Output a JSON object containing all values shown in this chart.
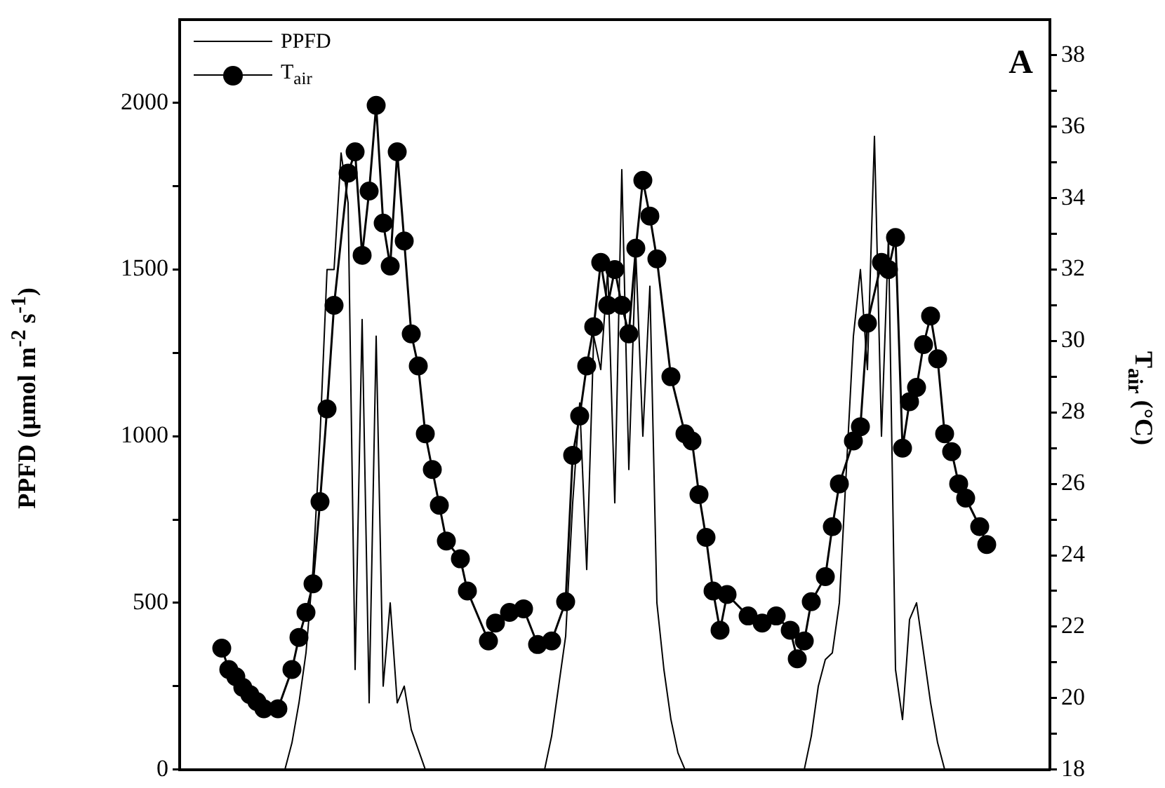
{
  "chart_data": {
    "type": "line",
    "ylabel": "PPFD (μmol m$^{-2}$ s$^{-1}$)",
    "y2label": "T$_{air}$ (°C)",
    "annotations": [
      "A"
    ],
    "categories": [
      null,
      null,
      null,
      null,
      null,
      null,
      null,
      null,
      null,
      null,
      null,
      null,
      null,
      null,
      null,
      null,
      null,
      null,
      null,
      null,
      null,
      null,
      null,
      null,
      null,
      null,
      null,
      null,
      null,
      null,
      null,
      null,
      null,
      null,
      null,
      null,
      null,
      null,
      null,
      null,
      null,
      null,
      null,
      null,
      null,
      null,
      null,
      null,
      null,
      null,
      null,
      null,
      null,
      null,
      null,
      null,
      null,
      null,
      null,
      null,
      null,
      null,
      null,
      null,
      null,
      null,
      null,
      null,
      null,
      null,
      null,
      null,
      null,
      null,
      null,
      null,
      null,
      null,
      null,
      null,
      null,
      null,
      null,
      null,
      null,
      null,
      null,
      null,
      null,
      null,
      null,
      null,
      null,
      null,
      null,
      null,
      null,
      null,
      null,
      null,
      null,
      null,
      null,
      null,
      null,
      null,
      null,
      null,
      null,
      null,
      null,
      null,
      null,
      null,
      null,
      null,
      null,
      null,
      null,
      null,
      null,
      null,
      null,
      null,
      null
    ],
    "series": [
      {
        "name": "PPFD",
        "color": "#000000",
        "marker": "none",
        "values": [
          0,
          0,
          0,
          0,
          0,
          0,
          0,
          0,
          0,
          0,
          0,
          0,
          0,
          0,
          0,
          0,
          80,
          200,
          350,
          600,
          1000,
          1500,
          1500,
          1850,
          1700,
          300,
          1350,
          200,
          1300,
          250,
          500,
          200,
          250,
          120,
          60,
          0,
          0,
          0,
          0,
          0,
          0,
          0,
          0,
          0,
          0,
          0,
          0,
          0,
          0,
          0,
          0,
          0,
          0,
          100,
          250,
          400,
          800,
          1100,
          600,
          1300,
          1200,
          1500,
          800,
          1800,
          900,
          1550,
          1000,
          1450,
          500,
          300,
          150,
          50,
          0,
          0,
          0,
          0,
          0,
          0,
          0,
          0,
          0,
          0,
          0,
          0,
          0,
          0,
          0,
          0,
          0,
          0,
          100,
          250,
          330,
          350,
          500,
          900,
          1300,
          1500,
          1200,
          1900,
          1000,
          1600,
          300,
          150,
          450,
          500,
          350,
          200,
          80,
          0,
          0,
          0,
          0,
          0,
          0,
          0,
          0,
          0,
          0,
          0,
          0,
          0,
          0,
          0,
          0
        ]
      },
      {
        "name": "T$_{air}$",
        "color": "#000000",
        "marker": "circle",
        "axis": "y2",
        "values": [
          null,
          null,
          null,
          null,
          null,
          null,
          21.4,
          20.8,
          20.6,
          20.3,
          20.1,
          19.9,
          19.7,
          null,
          19.7,
          null,
          20.8,
          21.7,
          22.4,
          23.2,
          25.5,
          28.1,
          31.0,
          null,
          34.7,
          35.3,
          32.4,
          34.2,
          36.6,
          33.3,
          32.1,
          35.3,
          32.8,
          30.2,
          29.3,
          27.4,
          26.4,
          25.4,
          24.4,
          null,
          23.9,
          23.0,
          null,
          null,
          21.6,
          22.1,
          null,
          22.4,
          null,
          22.5,
          null,
          21.5,
          null,
          21.6,
          null,
          22.7,
          26.8,
          27.9,
          29.3,
          30.4,
          32.2,
          31.0,
          32.0,
          31.0,
          30.2,
          32.6,
          34.5,
          33.5,
          32.3,
          null,
          29.0,
          null,
          27.4,
          27.2,
          25.7,
          24.5,
          23.0,
          21.9,
          22.9,
          null,
          null,
          22.3,
          null,
          22.1,
          null,
          22.3,
          null,
          21.9,
          21.1,
          21.6,
          22.7,
          null,
          23.4,
          24.8,
          26.0,
          null,
          27.2,
          27.6,
          30.5,
          null,
          32.2,
          32.0,
          32.9,
          27.0,
          28.3,
          28.7,
          29.9,
          30.7,
          29.5,
          27.4,
          26.9,
          26.0,
          25.6,
          null,
          24.8,
          24.3,
          null,
          null,
          null,
          null,
          null,
          null,
          null,
          null,
          null
        ]
      }
    ],
    "ylim": [
      0,
      2250
    ],
    "yticks": [
      0,
      {
        "value": 250,
        "label": null
      },
      500,
      {
        "value": 750,
        "label": null
      },
      1000,
      {
        "value": 1250,
        "label": null
      },
      1500,
      {
        "value": 1750,
        "label": null
      },
      2000
    ],
    "y2lim": [
      18,
      39
    ],
    "y2ticks": [
      18,
      {
        "value": 19,
        "label": null
      },
      20,
      {
        "value": 21,
        "label": null
      },
      22,
      {
        "value": 23,
        "label": null
      },
      24,
      {
        "value": 25,
        "label": null
      },
      26,
      {
        "value": 27,
        "label": null
      },
      28,
      {
        "value": 29,
        "label": null
      },
      30,
      {
        "value": 31,
        "label": null
      },
      32,
      {
        "value": 33,
        "label": null
      },
      34,
      {
        "value": 35,
        "label": null
      },
      36,
      {
        "value": 37,
        "label": null
      },
      38
    ],
    "tick_labels": "y",
    "grid": false,
    "legend": "top left",
    "line_style": "solid"
  }
}
